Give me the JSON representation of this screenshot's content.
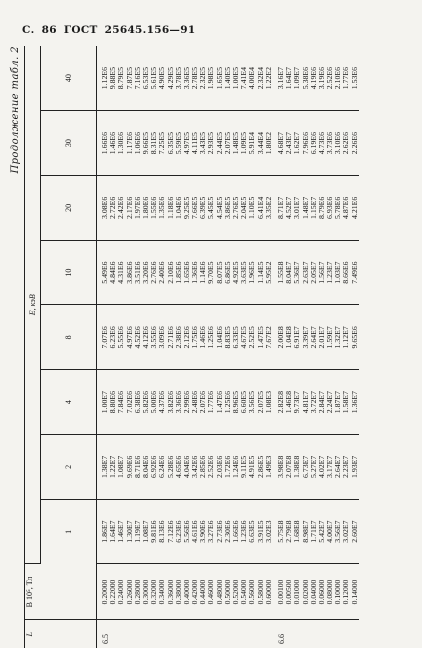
{
  "header": {
    "prefix": "С.",
    "page": "86",
    "standard": "ГОСТ",
    "number": "25645.156—91"
  },
  "continuation": "Продолжение табл. 2",
  "table": {
    "col_l": "L",
    "col_b": "B 10⁵, Тл",
    "energy_label": "E, кэВ",
    "energy_cols": [
      "1",
      "2",
      "4",
      "8",
      "10",
      "20",
      "30",
      "40"
    ],
    "groups": [
      {
        "l": "6.5",
        "b": [
          "0.20000",
          "0.22000",
          "0.24000",
          "0.26000",
          "0.28000",
          "0.30000",
          "0.32000",
          "0.34000",
          "0.36000",
          "0.38000",
          "0.40000",
          "0.42000",
          "0.44000",
          "0.46000",
          "0.48000",
          "0.50000",
          "0.52000",
          "0.54000",
          "0.56000",
          "0.58000",
          "0.60000"
        ],
        "cols": [
          [
            "1.86E7",
            "1.64E7",
            "1.46E7",
            "1.30E7",
            "1.19E7",
            "1.08E7",
            "9.81E6",
            "8.13E6",
            "7.12E6",
            "6.23E6",
            "5.56E6",
            "4.61E6",
            "3.90E6",
            "3.27E6",
            "2.73E6",
            "2.30E6",
            "1.66E6",
            "1.23E6",
            "6.63E5",
            "3.91E5",
            "3.02E3"
          ],
          [
            "1.38E7",
            "1.22E7",
            "1.08E7",
            "9.69E6",
            "8.71E6",
            "8.04E6",
            "6.92E6",
            "6.24E6",
            "5.28E6",
            "4.65E6",
            "4.04E6",
            "3.42E6",
            "2.85E6",
            "2.52E6",
            "2.03E6",
            "1.72E6",
            "1.24E6",
            "9.11E5",
            "4.91E5",
            "2.86E5",
            "1.49E3"
          ],
          [
            "1.00E7",
            "8.80E6",
            "7.84E6",
            "7.02E6",
            "6.38E6",
            "5.82E6",
            "5.00E6",
            "4.37E6",
            "3.82E6",
            "3.36E6",
            "2.99E6",
            "2.48E6",
            "2.07E6",
            "1.77E6",
            "1.47E6",
            "1.25E6",
            "8.96E5",
            "6.60E5",
            "3.56E5",
            "2.07E5",
            "1.08E3"
          ],
          [
            "7.07E6",
            "6.23E6",
            "5.55E6",
            "4.97E6",
            "4.52E6",
            "4.12E6",
            "3.55E6",
            "3.09E6",
            "2.71E6",
            "2.38E6",
            "2.12E6",
            "1.75E6",
            "1.46E6",
            "1.25E6",
            "1.04E6",
            "8.83E5",
            "6.33E5",
            "4.67E5",
            "2.52E5",
            "1.47E5",
            "7.67E2"
          ],
          [
            "5.49E6",
            "4.84E6",
            "4.31E6",
            "3.86E6",
            "3.51E6",
            "3.20E6",
            "2.76E6",
            "2.40E6",
            "2.10E6",
            "1.85E6",
            "1.65E6",
            "1.36E6",
            "1.14E6",
            "9.70E5",
            "8.07E5",
            "6.86E5",
            "4.92E5",
            "3.63E5",
            "1.96E5",
            "1.14E5",
            "5.95E2"
          ],
          [
            "3.08E6",
            "2.72E6",
            "2.42E6",
            "2.17E6",
            "1.97E6",
            "1.80E6",
            "1.55E6",
            "1.35E6",
            "1.18E6",
            "1.04E6",
            "9.25E5",
            "7.66E5",
            "6.39E5",
            "5.45E5",
            "4.54E5",
            "3.86E5",
            "2.76E5",
            "2.04E5",
            "1.10E5",
            "6.41E4",
            "3.35E2"
          ],
          [
            "1.66E6",
            "1.46E6",
            "1.30E6",
            "1.17E6",
            "1.06E6",
            "9.66E5",
            "8.31E5",
            "7.25E5",
            "6.35E5",
            "5.59E5",
            "4.97E5",
            "4.11E5",
            "3.43E5",
            "2.93E5",
            "2.44E5",
            "2.07E5",
            "1.48E5",
            "1.09E5",
            "5.91E4",
            "3.44E4",
            "1.80E2"
          ],
          [
            "1.12E6",
            "9.88E5",
            "8.79E5",
            "7.87E5",
            "7.16E5",
            "6.53E5",
            "5.61E5",
            "4.90E5",
            "4.29E5",
            "3.78E5",
            "3.36E5",
            "2.78E5",
            "2.32E5",
            "1.98E5",
            "1.65E5",
            "1.40E5",
            "1.00E5",
            "7.41E4",
            "4.00E4",
            "2.32E4",
            "1.22E2"
          ]
        ]
      },
      {
        "l": "6.6",
        "b": [
          "0.00100",
          "0.00500",
          "0.01000",
          "0.02000",
          "0.04000",
          "0.06000",
          "0.08000",
          "0.10000",
          "0.12000",
          "0.14000"
        ],
        "cols": [
          [
            "5.75E8",
            "2.79E8",
            "1.68E8",
            "8.98E7",
            "1.71E7",
            "5.42E7",
            "4.00E7",
            "3.56E7",
            "3.02E7",
            "2.60E7"
          ],
          [
            "3.98E8",
            "2.07E8",
            "1.38E8",
            "6.73E7",
            "5.27E7",
            "4.02E7",
            "3.17E7",
            "2.64E7",
            "2.23E7",
            "1.93E7"
          ],
          [
            "2.82E8",
            "1.46E8",
            "9.73E7",
            "4.81E7",
            "3.72E7",
            "2.84E7",
            "2.24E7",
            "1.87E7",
            "1.58E7",
            "1.36E7"
          ],
          [
            "2.00E8",
            "1.04E8",
            "6.91E7",
            "3.39E7",
            "2.64E7",
            "2.01E7",
            "1.59E7",
            "1.32E7",
            "1.12E7",
            "9.65E6"
          ],
          [
            "1.55E8",
            "8.04E7",
            "5.36E7",
            "2.63E7",
            "2.05E7",
            "1.56E7",
            "1.23E7",
            "1.03E7",
            "8.66E6",
            "7.49E6"
          ],
          [
            "8.71E7",
            "4.52E7",
            "3.01E7",
            "1.48E7",
            "1.15E7",
            "8.79E6",
            "6.93E6",
            "5.78E6",
            "4.87E6",
            "4.21E6"
          ],
          [
            "4.68E7",
            "2.43E7",
            "1.62E7",
            "7.96E6",
            "6.19E6",
            "4.73E6",
            "3.73E6",
            "3.10E6",
            "2.62E6",
            "2.26E6"
          ],
          [
            "3.16E7",
            "1.64E7",
            "1.09E7",
            "5.38E6",
            "4.19E6",
            "3.19E6",
            "2.52E6",
            "2.10E6",
            "1.77E6",
            "1.53E6"
          ]
        ]
      }
    ]
  }
}
